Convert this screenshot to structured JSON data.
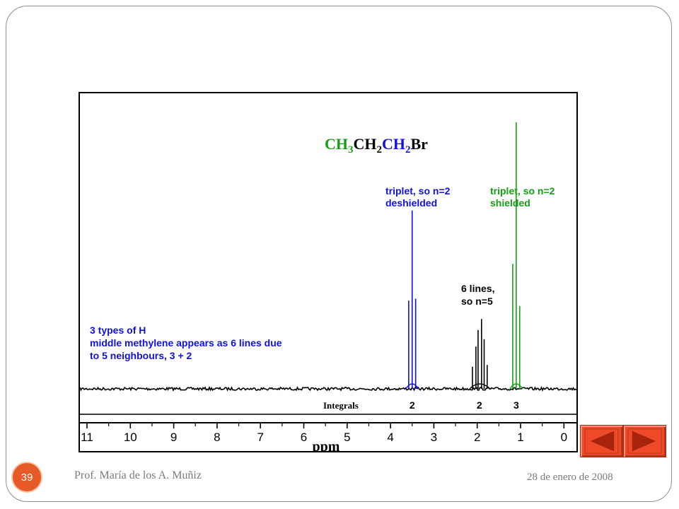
{
  "slide": {
    "author": "Prof. María de los A. Muñiz",
    "date": "28 de enero de 2008",
    "page_number": "39"
  },
  "navigation": {
    "prev_icon": "prev-triangle-icon",
    "next_icon": "next-triangle-icon",
    "button_color": "#ee4a2a"
  },
  "chart_data": {
    "type": "line",
    "xlabel": "ppm",
    "xlim": [
      11.1,
      -0.05
    ],
    "x_reversed": true,
    "xticks": [
      11,
      10,
      9,
      8,
      7,
      6,
      5,
      4,
      3,
      2,
      1,
      0
    ],
    "molecule": [
      {
        "text": "CH",
        "color": "#14a014"
      },
      {
        "text": "3",
        "color": "#14a014",
        "sub": true
      },
      {
        "text": "CH",
        "color": "#000000"
      },
      {
        "text": "2",
        "color": "#000000",
        "sub": true
      },
      {
        "text": "CH",
        "color": "#1010e0"
      },
      {
        "text": "2",
        "color": "#1010e0",
        "sub": true
      },
      {
        "text": "Br",
        "color": "#000000"
      }
    ],
    "integrals": {
      "label": "Integrals",
      "values": [
        {
          "ppm": 3.5,
          "text": "2"
        },
        {
          "ppm": 1.95,
          "text": "2"
        },
        {
          "ppm": 1.1,
          "text": "3"
        }
      ]
    },
    "annotations": [
      {
        "lines": [
          "triplet, so n=2",
          "deshielded"
        ],
        "color": "#1010e0"
      },
      {
        "lines": [
          "triplet, so n=2",
          "shielded"
        ],
        "color": "#14a014"
      },
      {
        "lines": [
          "6 lines,",
          "so n=5"
        ],
        "color": "#000000"
      },
      {
        "lines": [
          "3 types of H",
          "middle methylene appears as 6 lines due",
          "to 5 neighbours, 3 + 2"
        ],
        "color": "#1010e0"
      }
    ],
    "series": [
      {
        "color": "#1010e0",
        "center": 3.5,
        "peaks": [
          {
            "x": 3.58,
            "y": 0.48
          },
          {
            "x": 3.5,
            "y": 0.97
          },
          {
            "x": 3.42,
            "y": 0.49
          }
        ]
      },
      {
        "color": "#000000",
        "center": 1.95,
        "peaks": [
          {
            "x": 2.11,
            "y": 0.12
          },
          {
            "x": 2.03,
            "y": 0.23
          },
          {
            "x": 1.98,
            "y": 0.32
          },
          {
            "x": 1.9,
            "y": 0.38
          },
          {
            "x": 1.84,
            "y": 0.27
          },
          {
            "x": 1.77,
            "y": 0.13
          }
        ]
      },
      {
        "color": "#14a014",
        "center": 1.1,
        "peaks": [
          {
            "x": 1.18,
            "y": 0.68
          },
          {
            "x": 1.1,
            "y": 1.45
          },
          {
            "x": 1.02,
            "y": 0.45
          }
        ]
      }
    ]
  }
}
